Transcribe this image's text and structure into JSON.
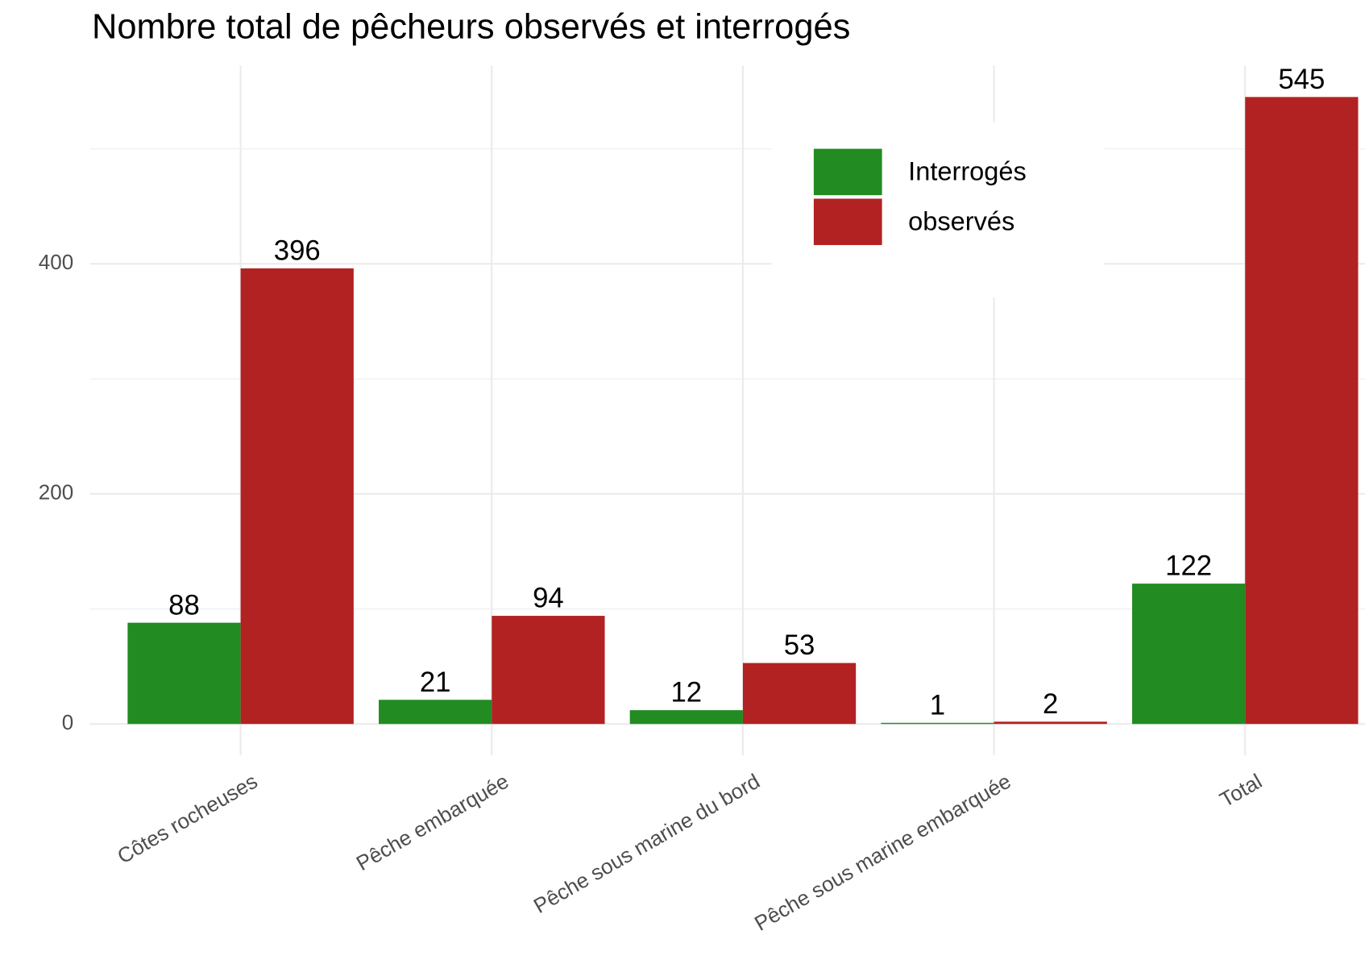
{
  "chart_data": {
    "type": "bar",
    "title": "Nombre total de pêcheurs observés et interrogés",
    "categories": [
      "Côtes rocheuses",
      "Pêche embarquée",
      "Pêche sous marine du bord",
      "Pêche sous marine embarquée",
      "Total"
    ],
    "series": [
      {
        "name": "Interrogés",
        "color": "#228b22",
        "values": [
          88,
          21,
          12,
          1,
          122
        ]
      },
      {
        "name": "observés",
        "color": "#b22222",
        "values": [
          396,
          94,
          53,
          2,
          545
        ]
      }
    ],
    "ylim": [
      -27.25,
      572.25
    ],
    "yticks": [
      0,
      200,
      400
    ],
    "minor_grid": [
      100,
      300,
      500
    ],
    "grid": true,
    "legend": "top-right"
  }
}
